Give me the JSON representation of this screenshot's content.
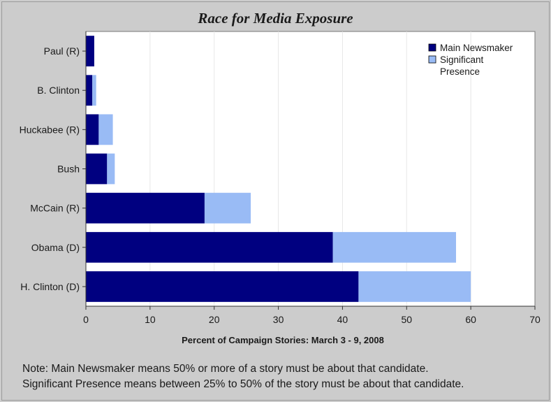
{
  "chart_data": {
    "type": "bar",
    "orientation": "horizontal",
    "stacked": true,
    "title": "Race for Media Exposure",
    "xlabel": "Percent of Campaign Stories:  March 3 - 9, 2008",
    "ylabel": "",
    "xlim": [
      0,
      70
    ],
    "xticks": [
      0,
      10,
      20,
      30,
      40,
      50,
      60,
      70
    ],
    "grid": "vertical",
    "legend_position": "top-right",
    "categories": [
      "Paul (R)",
      "B. Clinton",
      "Huckabee (R)",
      "Bush",
      "McCain (R)",
      "Obama (D)",
      "H. Clinton (D)"
    ],
    "series": [
      {
        "name": "Main Newsmaker",
        "color": "#000080",
        "values": [
          1.3,
          1.0,
          2.0,
          3.3,
          18.5,
          38.5,
          42.5
        ]
      },
      {
        "name": "Significant Presence",
        "color": "#99bbf5",
        "values": [
          0.0,
          0.6,
          2.2,
          1.2,
          7.2,
          19.2,
          17.5
        ]
      }
    ]
  },
  "note": {
    "line1": "Note: Main Newsmaker means 50% or more of a story must be about that candidate.",
    "line2": "Significant Presence means between 25% to 50% of the story must be about that candidate."
  }
}
